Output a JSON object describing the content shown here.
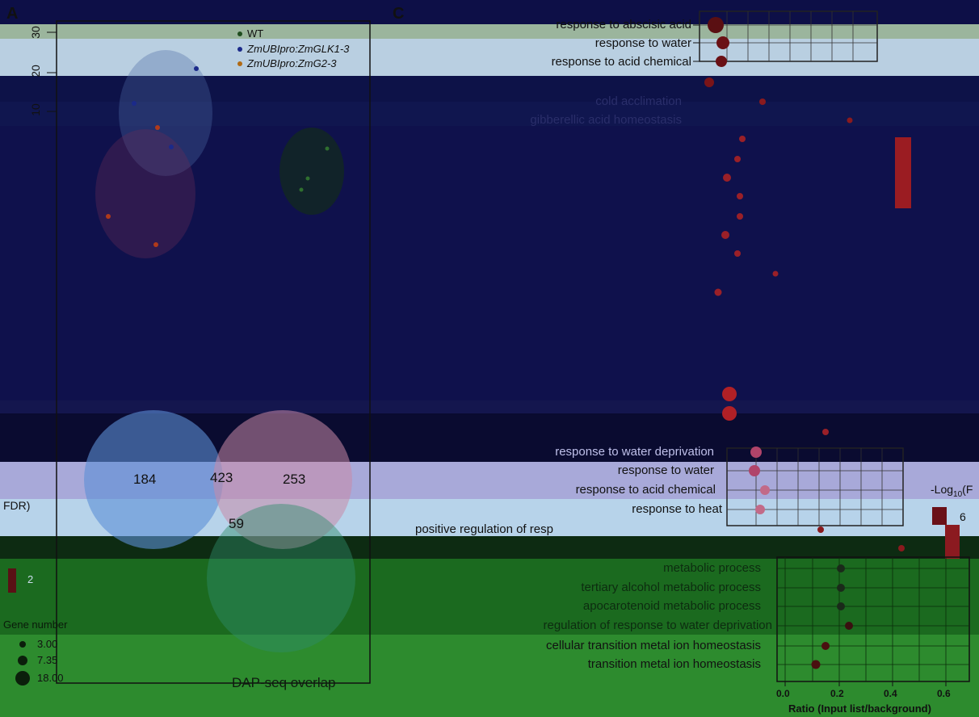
{
  "figure": {
    "panel_a": "A",
    "panel_c": "C"
  },
  "pca": {
    "y_ticks": [
      "30",
      "20",
      "10"
    ],
    "legend": [
      {
        "label": "WT",
        "color": "#1f4d1f"
      },
      {
        "label": "ZmUBIpro:ZmGLK1-3",
        "color": "#1b2a8a"
      },
      {
        "label": "ZmUBIpro:ZmG2-3",
        "color": "#b06a14"
      }
    ]
  },
  "venn": {
    "a_only": "184",
    "ab": "423",
    "b_only": "253",
    "abc": "59",
    "caption": "DAP-seq overlap",
    "colors": {
      "a": "#5b8fd6",
      "b": "#c98aa8",
      "c": "#2e8b6b"
    }
  },
  "fdr_label": "FDR)",
  "neglog_label": "-Log",
  "neglog_sub": "10",
  "neglog_tail": "(F",
  "scale_values": [
    "6",
    "2"
  ],
  "gene_number": {
    "title": "Gene number",
    "sizes": [
      "3.00",
      "7.35",
      "18.00"
    ]
  },
  "go_top": {
    "terms": [
      "response to abscisic acid",
      "response to water",
      "response to acid chemical",
      "cold acclimation",
      "gibberellic acid homeostasis"
    ]
  },
  "go_mid": {
    "terms": [
      "response to water deprivation",
      "response to water",
      "response to acid chemical",
      "response to heat",
      "positive regulation of resp"
    ]
  },
  "go_bottom": {
    "terms": [
      "metabolic process",
      "tertiary alcohol metabolic process",
      "apocarotenoid metabolic process",
      "regulation of response to water deprivation",
      "cellular transition metal ion homeostasis",
      "transition metal ion homeostasis"
    ],
    "x_ticks": [
      "0.0",
      "0.2",
      "0.4",
      "0.6"
    ],
    "x_label": "Ratio (Input list/background)"
  }
}
